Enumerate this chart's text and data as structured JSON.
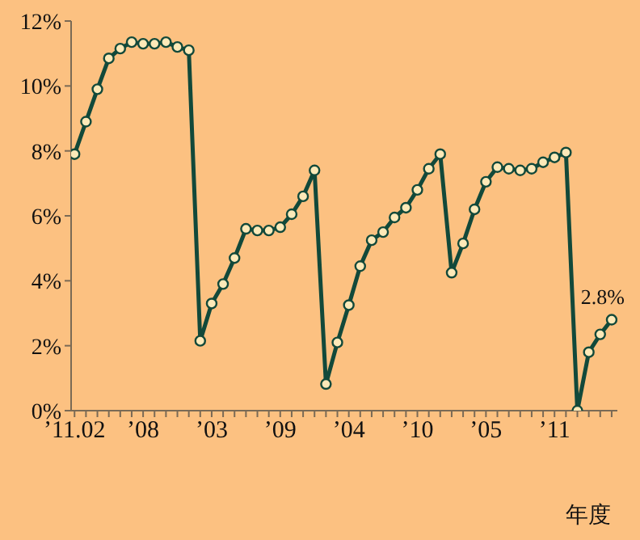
{
  "chart_data": {
    "type": "line",
    "xlabel": "年度",
    "categories": [
      "’11.02",
      null,
      null,
      null,
      null,
      null,
      "’08",
      null,
      null,
      null,
      null,
      null,
      "’03",
      null,
      null,
      null,
      null,
      null,
      "’09",
      null,
      null,
      null,
      null,
      null,
      "’04",
      null,
      null,
      null,
      null,
      null,
      "’10",
      null,
      null,
      null,
      null,
      null,
      "’05",
      null,
      null,
      null,
      null,
      null,
      "’11",
      null,
      null,
      null,
      null,
      null
    ],
    "series": [
      {
        "color": "#12493a",
        "values": [
          7.9,
          8.9,
          9.9,
          10.85,
          11.15,
          11.35,
          11.3,
          11.3,
          11.35,
          11.2,
          11.1,
          2.15,
          3.3,
          3.9,
          4.7,
          5.6,
          5.55,
          5.55,
          5.65,
          6.05,
          6.6,
          7.4,
          0.82,
          2.1,
          3.25,
          4.45,
          5.25,
          5.5,
          5.95,
          6.25,
          6.8,
          7.45,
          7.9,
          4.25,
          5.15,
          6.2,
          7.05,
          7.5,
          7.45,
          7.4,
          7.45,
          7.65,
          7.8,
          7.95,
          0,
          1.8,
          2.35,
          2.8
        ]
      }
    ],
    "ylim": [
      0,
      12
    ],
    "yticks": [
      {
        "value": 0,
        "label": "0%"
      },
      {
        "value": 2,
        "label": "2%"
      },
      {
        "value": 4,
        "label": "4%"
      },
      {
        "value": 6,
        "label": "6%"
      },
      {
        "value": 8,
        "label": "8%"
      },
      {
        "value": 10,
        "label": "10%"
      },
      {
        "value": 12,
        "label": "12%"
      }
    ],
    "annotations": [
      "2.8%"
    ],
    "marker": "circle",
    "line_style": "solid",
    "grid": false,
    "legend": false
  }
}
